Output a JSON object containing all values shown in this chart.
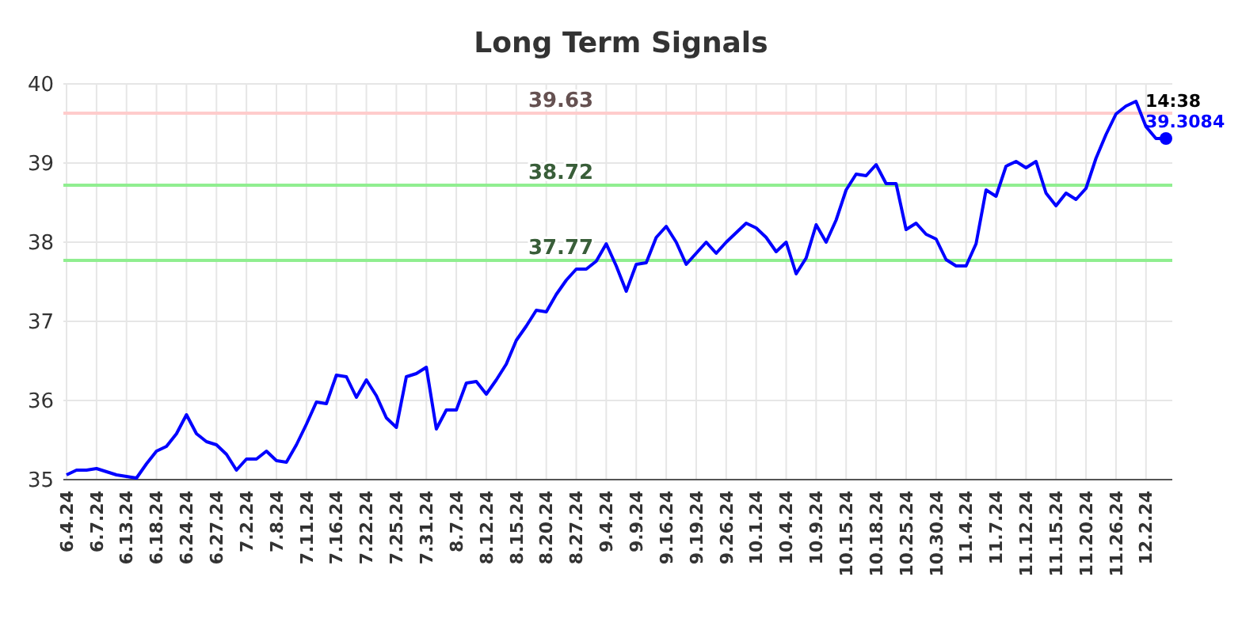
{
  "chart_data": {
    "type": "line",
    "title": "Long Term Signals",
    "categories": [
      "6.4.24",
      null,
      null,
      "6.7.24",
      null,
      null,
      "6.13.24",
      null,
      null,
      "6.18.24",
      null,
      null,
      "6.24.24",
      null,
      null,
      "6.27.24",
      null,
      null,
      "7.2.24",
      null,
      null,
      "7.8.24",
      null,
      null,
      "7.11.24",
      null,
      null,
      "7.16.24",
      null,
      null,
      "7.22.24",
      null,
      null,
      "7.25.24",
      null,
      null,
      "7.31.24",
      null,
      null,
      "8.7.24",
      null,
      null,
      "8.12.24",
      null,
      null,
      "8.15.24",
      null,
      null,
      "8.20.24",
      null,
      null,
      "8.27.24",
      null,
      null,
      "9.4.24",
      null,
      null,
      "9.9.24",
      null,
      null,
      "9.16.24",
      null,
      null,
      "9.19.24",
      null,
      null,
      "9.26.24",
      null,
      null,
      "10.1.24",
      null,
      null,
      "10.4.24",
      null,
      null,
      "10.9.24",
      null,
      null,
      "10.15.24",
      null,
      null,
      "10.18.24",
      null,
      null,
      "10.25.24",
      null,
      null,
      "10.30.24",
      null,
      null,
      "11.4.24",
      null,
      null,
      "11.7.24",
      null,
      null,
      "11.12.24",
      null,
      null,
      "11.15.24",
      null,
      null,
      "11.20.24",
      null,
      null,
      "11.26.24",
      null,
      null,
      "12.2.24",
      null,
      null
    ],
    "series": [
      {
        "color": "#0000ff",
        "values": [
          35.06,
          35.12,
          35.12,
          35.14,
          35.1,
          35.06,
          35.04,
          35.02,
          35.2,
          35.36,
          35.42,
          35.58,
          35.82,
          35.58,
          35.48,
          35.44,
          35.32,
          35.12,
          35.26,
          35.26,
          35.36,
          35.24,
          35.22,
          35.44,
          35.7,
          35.98,
          35.96,
          36.32,
          36.3,
          36.04,
          36.26,
          36.06,
          35.78,
          35.66,
          36.3,
          36.34,
          36.42,
          35.64,
          35.88,
          35.88,
          36.22,
          36.24,
          36.08,
          36.26,
          36.46,
          36.76,
          36.94,
          37.14,
          37.12,
          37.34,
          37.52,
          37.66,
          37.66,
          37.76,
          37.98,
          37.7,
          37.38,
          37.72,
          37.74,
          38.06,
          38.2,
          38,
          37.72,
          37.86,
          38,
          37.86,
          38,
          38.12,
          38.24,
          38.18,
          38.06,
          37.88,
          38,
          37.6,
          37.8,
          38.22,
          38,
          38.28,
          38.66,
          38.86,
          38.84,
          38.98,
          38.74,
          38.74,
          38.16,
          38.24,
          38.1,
          38.04,
          37.78,
          37.7,
          37.7,
          37.98,
          38.66,
          38.58,
          38.96,
          39.02,
          38.94,
          39.02,
          38.62,
          38.46,
          38.62,
          38.54,
          38.68,
          39.06,
          39.36,
          39.62,
          39.72,
          39.78,
          39.46,
          39.31,
          39.31
        ]
      }
    ],
    "ylim": [
      35,
      40
    ],
    "yticks": [
      35,
      36,
      37,
      38,
      39,
      40
    ],
    "grid": true,
    "ref_lines": [
      {
        "axis": "y",
        "value": 39.63,
        "label": "39.63",
        "color": "#ffcccc"
      },
      {
        "axis": "y",
        "value": 38.72,
        "label": "38.72",
        "color": "#90ee90"
      },
      {
        "axis": "y",
        "value": 37.77,
        "label": "37.77",
        "color": "#90ee90"
      }
    ],
    "annotations": [
      "14:38",
      "39.3084"
    ]
  }
}
